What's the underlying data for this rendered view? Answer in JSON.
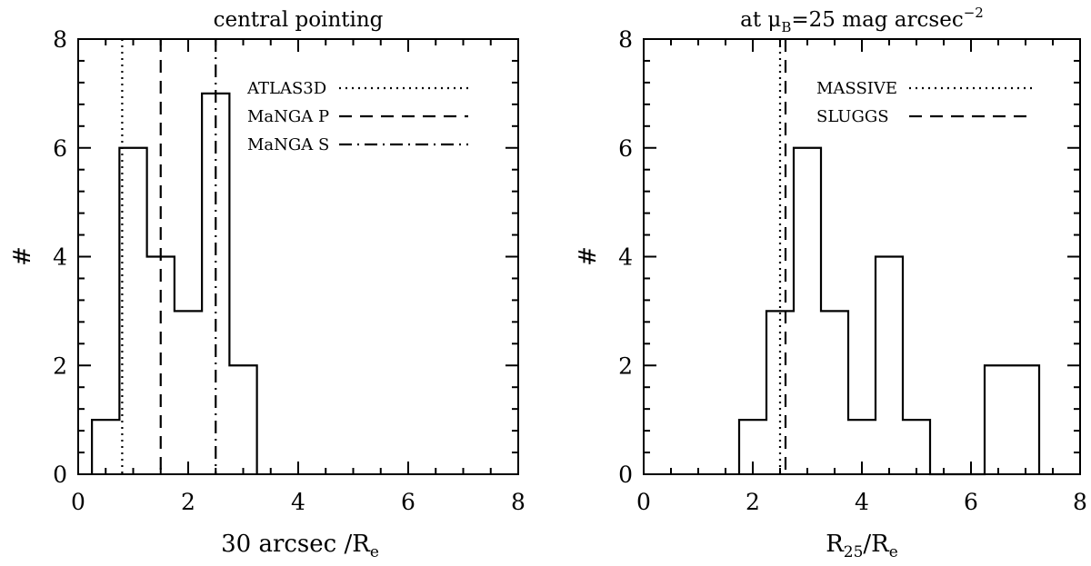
{
  "chart_data": [
    {
      "type": "histogram",
      "title": "central pointing",
      "xlabel_main": "30 arcsec /R",
      "xlabel_sub": "e",
      "ylabel": "#",
      "xlim": [
        0,
        8
      ],
      "ylim": [
        0,
        8
      ],
      "xticks": [
        "0",
        "2",
        "4",
        "6",
        "8"
      ],
      "yticks": [
        "0",
        "2",
        "4",
        "6",
        "8"
      ],
      "bin_width": 0.5,
      "bins": [
        {
          "x0": 0.25,
          "x1": 0.75,
          "count": 1
        },
        {
          "x0": 0.75,
          "x1": 1.25,
          "count": 6
        },
        {
          "x0": 1.25,
          "x1": 1.75,
          "count": 4
        },
        {
          "x0": 1.75,
          "x1": 2.25,
          "count": 3
        },
        {
          "x0": 2.25,
          "x1": 2.75,
          "count": 7
        },
        {
          "x0": 2.75,
          "x1": 3.25,
          "count": 2
        }
      ],
      "reference_lines": [
        {
          "label": "ATLAS3D",
          "x": 0.8,
          "style": "dotted"
        },
        {
          "label": "MaNGA P",
          "x": 1.5,
          "style": "dashed"
        },
        {
          "label": "MaNGA S",
          "x": 2.5,
          "style": "dashdot"
        }
      ],
      "legend_position": "top-right"
    },
    {
      "type": "histogram",
      "title_main": "at μ",
      "title_sub": "B",
      "title_rest": "=25 mag arcsec",
      "title_sup": "−2",
      "xlabel_main": "R",
      "xlabel_sub": "25",
      "xlabel_mid": "/R",
      "xlabel_sub2": "e",
      "ylabel": "#",
      "xlim": [
        0,
        8
      ],
      "ylim": [
        0,
        8
      ],
      "xticks": [
        "0",
        "2",
        "4",
        "6",
        "8"
      ],
      "yticks": [
        "0",
        "2",
        "4",
        "6",
        "8"
      ],
      "bin_width": 0.5,
      "bins": [
        {
          "x0": 1.75,
          "x1": 2.25,
          "count": 1
        },
        {
          "x0": 2.25,
          "x1": 2.75,
          "count": 3
        },
        {
          "x0": 2.75,
          "x1": 3.25,
          "count": 6
        },
        {
          "x0": 3.25,
          "x1": 3.75,
          "count": 3
        },
        {
          "x0": 3.75,
          "x1": 4.25,
          "count": 1
        },
        {
          "x0": 4.25,
          "x1": 4.75,
          "count": 4
        },
        {
          "x0": 4.75,
          "x1": 5.25,
          "count": 1
        },
        {
          "x0": 5.25,
          "x1": 5.75,
          "count": 0
        },
        {
          "x0": 5.75,
          "x1": 6.25,
          "count": 0
        },
        {
          "x0": 6.25,
          "x1": 6.75,
          "count": 2
        },
        {
          "x0": 6.75,
          "x1": 7.25,
          "count": 2
        }
      ],
      "reference_lines": [
        {
          "label": "MASSIVE",
          "x": 2.5,
          "style": "dotted"
        },
        {
          "label": "SLUGGS",
          "x": 2.6,
          "style": "dashed"
        }
      ],
      "legend_position": "top-right"
    }
  ]
}
